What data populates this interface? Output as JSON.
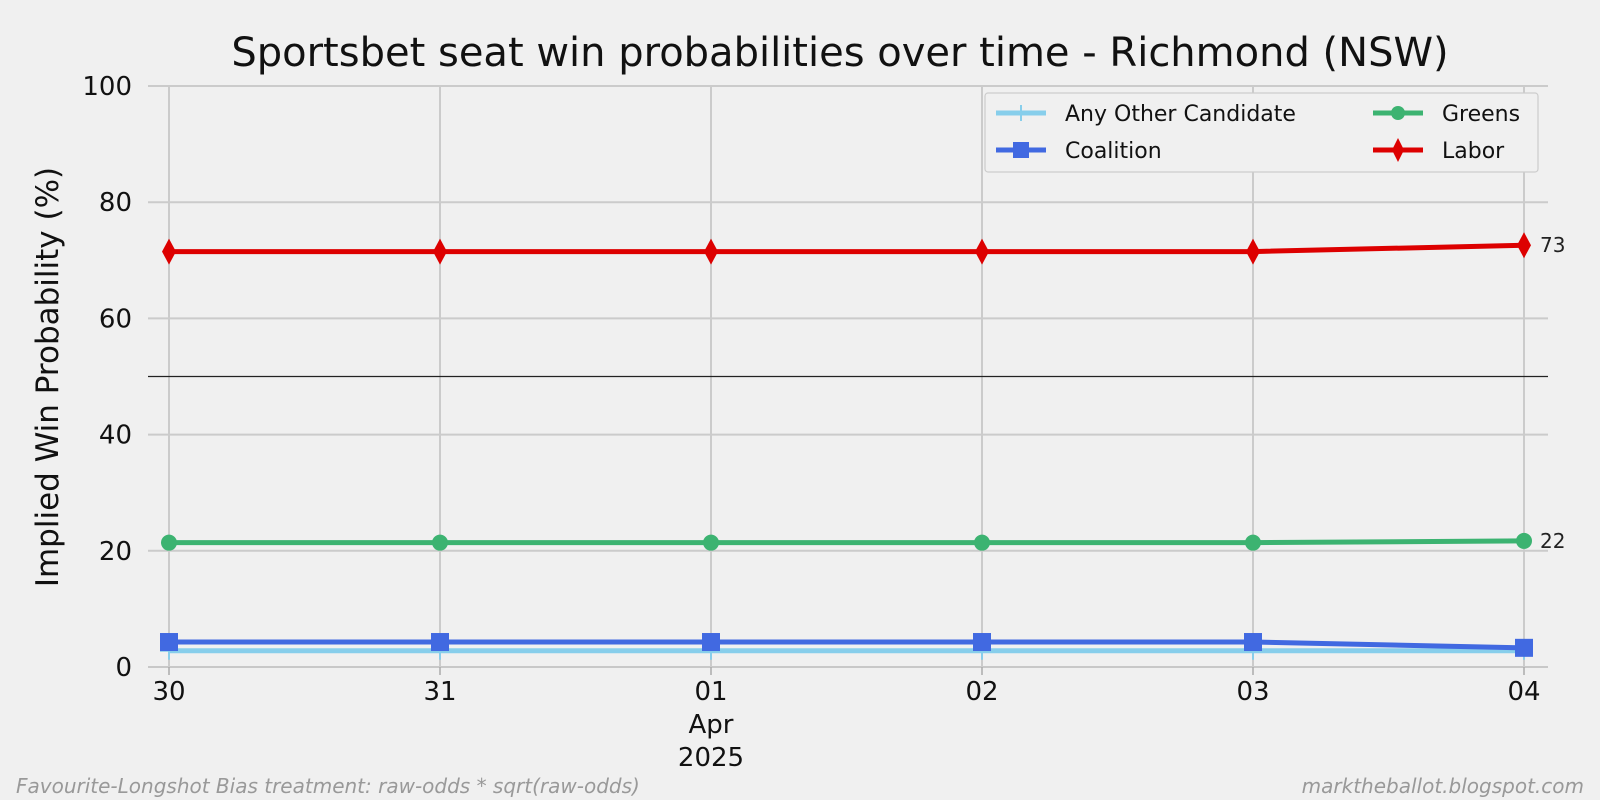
{
  "chart_data": {
    "type": "line",
    "title": "Sportsbet seat win probabilities over time - Richmond (NSW)",
    "xlabel": "",
    "ylabel": "Implied Win Probability (%)",
    "ylim": [
      0,
      100
    ],
    "yticks": [
      0,
      20,
      40,
      60,
      80,
      100
    ],
    "x": [
      "2025-03-30",
      "2025-03-31",
      "2025-04-01",
      "2025-04-02",
      "2025-04-03",
      "2025-04-04"
    ],
    "x_tick_labels": [
      "30",
      "31",
      "01",
      "02",
      "03",
      "04"
    ],
    "x_secondary_label": {
      "at": "2025-04-01",
      "lines": [
        "Apr",
        "2025"
      ]
    },
    "reference_line": 50,
    "grid": true,
    "legend_position": "top-right",
    "series": [
      {
        "name": "Any Other Candidate",
        "color": "#87ceeb",
        "marker": "plus",
        "values": [
          2.8,
          2.8,
          2.8,
          2.8,
          2.8,
          2.8
        ]
      },
      {
        "name": "Coalition",
        "color": "#4169e1",
        "marker": "square",
        "values": [
          4.3,
          4.3,
          4.3,
          4.3,
          4.3,
          3.3
        ]
      },
      {
        "name": "Greens",
        "color": "#3cb371",
        "marker": "circle",
        "values": [
          21.4,
          21.4,
          21.4,
          21.4,
          21.4,
          21.7
        ]
      },
      {
        "name": "Labor",
        "color": "#dd0000",
        "marker": "diamond",
        "values": [
          71.5,
          71.5,
          71.5,
          71.5,
          71.5,
          72.6
        ]
      }
    ],
    "end_annotations": [
      {
        "series": "Labor",
        "text": "73"
      },
      {
        "series": "Greens",
        "text": "22"
      }
    ]
  },
  "footer": {
    "left": "Favourite-Longshot Bias treatment: raw-odds * sqrt(raw-odds)",
    "right": "marktheballot.blogspot.com"
  }
}
